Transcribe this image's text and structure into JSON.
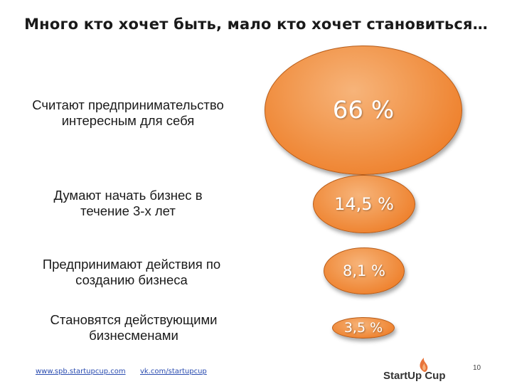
{
  "title": "Много кто хочет быть, мало кто хочет становиться…",
  "rows": [
    {
      "label_line1": "Считают предпринимательство",
      "label_line2": "интересным для себя",
      "value": "66 %"
    },
    {
      "label_line1": "Думают начать бизнес в",
      "label_line2": "течение 3-х лет",
      "value": "14,5 %"
    },
    {
      "label_line1": "Предпринимают действия по",
      "label_line2": "созданию бизнеса",
      "value": "8,1 %"
    },
    {
      "label_line1": "Становятся действующими",
      "label_line2": "бизнесменами",
      "value": "3,5 %"
    }
  ],
  "footer": {
    "link1": "www.spb.startupcup.com",
    "link2": "vk.com/startupcup",
    "page_number": "10",
    "logo_text": "StartUp Cup"
  },
  "colors": {
    "accent": "#ee7f2a",
    "logo_flame": "#e8743b"
  }
}
